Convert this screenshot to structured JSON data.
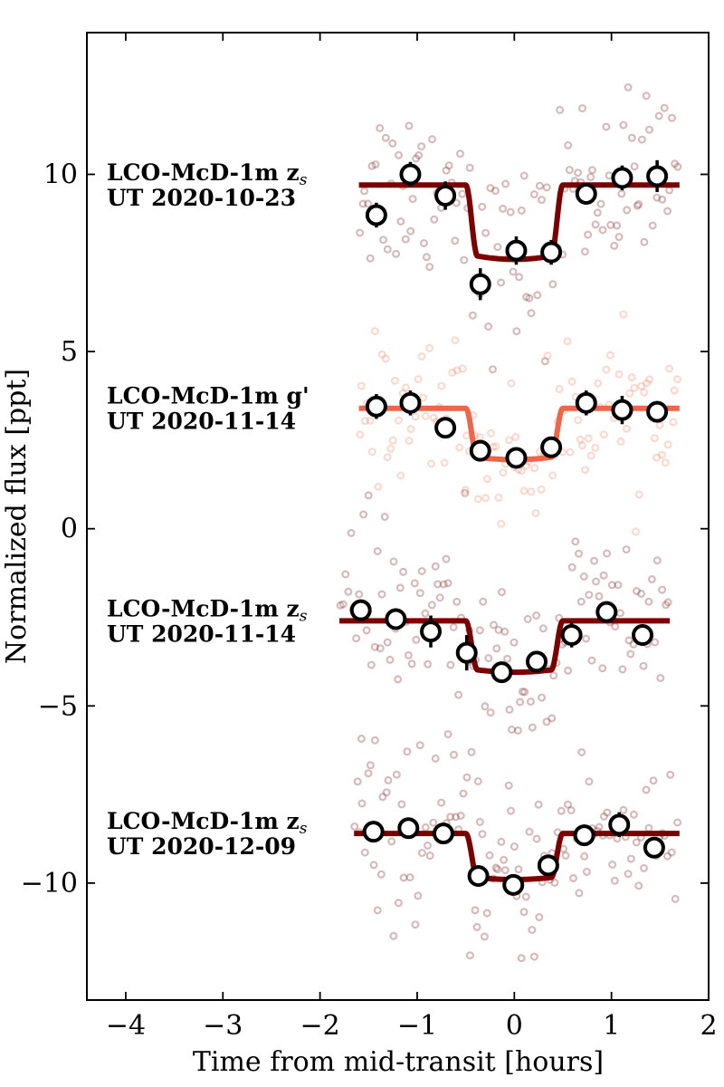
{
  "chart_data": {
    "type": "scatter",
    "xlabel": "Time from mid-transit [hours]",
    "ylabel": "Normalized flux [ppt]",
    "xlim": [
      -4.4,
      2.0
    ],
    "ylim": [
      -13.3,
      14.0
    ],
    "xticks": [
      {
        "value": -4,
        "label": "−4"
      },
      {
        "value": -3,
        "label": "−3"
      },
      {
        "value": -2,
        "label": "−2"
      },
      {
        "value": -1,
        "label": "−1"
      },
      {
        "value": 0,
        "label": "0"
      },
      {
        "value": 1,
        "label": "1"
      },
      {
        "value": 2,
        "label": "2"
      }
    ],
    "yticks": [
      {
        "value": 10,
        "label": "10"
      },
      {
        "value": 5,
        "label": "5"
      },
      {
        "value": 0,
        "label": "0"
      },
      {
        "value": -5,
        "label": "−5"
      },
      {
        "value": -10,
        "label": "−10"
      }
    ],
    "transit": {
      "duration_hours": 1.0,
      "ingress_hours": 0.12
    },
    "series": [
      {
        "name": "LCO-McD-1m z_s UT 2020-10-23",
        "label_line1": "LCO-McD-1m z",
        "label_sub": "s",
        "label_line2": "UT 2020-10-23",
        "model_color": "#7a0000",
        "raw_color": "#8b3a3a",
        "raw_opacity": 0.35,
        "x_range": [
          -1.6,
          1.7
        ],
        "baseline": 9.7,
        "depth": 2.1,
        "raw_scatter": 1.3,
        "binned": [
          {
            "x": -1.42,
            "y": 8.85,
            "err": 0.35
          },
          {
            "x": -1.07,
            "y": 10.0,
            "err": 0.35
          },
          {
            "x": -0.71,
            "y": 9.4,
            "err": 0.4
          },
          {
            "x": -0.35,
            "y": 6.9,
            "err": 0.45
          },
          {
            "x": 0.02,
            "y": 7.85,
            "err": 0.4
          },
          {
            "x": 0.38,
            "y": 7.8,
            "err": 0.35
          },
          {
            "x": 0.74,
            "y": 9.45,
            "err": 0.3
          },
          {
            "x": 1.11,
            "y": 9.9,
            "err": 0.35
          },
          {
            "x": 1.47,
            "y": 9.95,
            "err": 0.45
          }
        ]
      },
      {
        "name": "LCO-McD-1m g' UT 2020-11-14",
        "label_line1": "LCO-McD-1m g'",
        "label_sub": "",
        "label_line2": "UT 2020-11-14",
        "model_color": "#ef6548",
        "raw_color": "#f08060",
        "raw_opacity": 0.3,
        "x_range": [
          -1.6,
          1.7
        ],
        "baseline": 3.4,
        "depth": 1.45,
        "raw_scatter": 1.0,
        "binned": [
          {
            "x": -1.42,
            "y": 3.45,
            "err": 0.35
          },
          {
            "x": -1.07,
            "y": 3.55,
            "err": 0.35
          },
          {
            "x": -0.71,
            "y": 2.85,
            "err": 0.3
          },
          {
            "x": -0.35,
            "y": 2.2,
            "err": 0.3
          },
          {
            "x": 0.02,
            "y": 2.0,
            "err": 0.25
          },
          {
            "x": 0.38,
            "y": 2.3,
            "err": 0.3
          },
          {
            "x": 0.74,
            "y": 3.55,
            "err": 0.35
          },
          {
            "x": 1.11,
            "y": 3.35,
            "err": 0.4
          },
          {
            "x": 1.47,
            "y": 3.3,
            "err": 0.3
          }
        ]
      },
      {
        "name": "LCO-McD-1m z_s UT 2020-11-14",
        "label_line1": "LCO-McD-1m z",
        "label_sub": "s",
        "label_line2": "UT 2020-11-14",
        "model_color": "#7a0000",
        "raw_color": "#8b3a3a",
        "raw_opacity": 0.35,
        "x_range": [
          -1.8,
          1.6
        ],
        "baseline": -2.6,
        "depth": 1.45,
        "raw_scatter": 1.3,
        "binned": [
          {
            "x": -1.58,
            "y": -2.3,
            "err": 0.3
          },
          {
            "x": -1.22,
            "y": -2.55,
            "err": 0.3
          },
          {
            "x": -0.86,
            "y": -2.9,
            "err": 0.45
          },
          {
            "x": -0.49,
            "y": -3.5,
            "err": 0.5
          },
          {
            "x": -0.13,
            "y": -4.05,
            "err": 0.3
          },
          {
            "x": 0.23,
            "y": -3.75,
            "err": 0.3
          },
          {
            "x": 0.59,
            "y": -3.0,
            "err": 0.35
          },
          {
            "x": 0.95,
            "y": -2.35,
            "err": 0.3
          },
          {
            "x": 1.32,
            "y": -3.0,
            "err": 0.3
          }
        ]
      },
      {
        "name": "LCO-McD-1m z_s UT 2020-12-09",
        "label_line1": "LCO-McD-1m z",
        "label_sub": "s",
        "label_line2": "UT 2020-12-09",
        "model_color": "#7a0000",
        "raw_color": "#8b3a3a",
        "raw_opacity": 0.35,
        "x_range": [
          -1.65,
          1.7
        ],
        "baseline": -8.6,
        "depth": 1.3,
        "raw_scatter": 1.2,
        "binned": [
          {
            "x": -1.45,
            "y": -8.55,
            "err": 0.3
          },
          {
            "x": -1.09,
            "y": -8.45,
            "err": 0.3
          },
          {
            "x": -0.73,
            "y": -8.6,
            "err": 0.3
          },
          {
            "x": -0.37,
            "y": -9.8,
            "err": 0.3
          },
          {
            "x": -0.01,
            "y": -10.05,
            "err": 0.3
          },
          {
            "x": 0.35,
            "y": -9.5,
            "err": 0.3
          },
          {
            "x": 0.72,
            "y": -8.65,
            "err": 0.3
          },
          {
            "x": 1.08,
            "y": -8.35,
            "err": 0.35
          },
          {
            "x": 1.44,
            "y": -9.0,
            "err": 0.3
          }
        ]
      }
    ]
  }
}
